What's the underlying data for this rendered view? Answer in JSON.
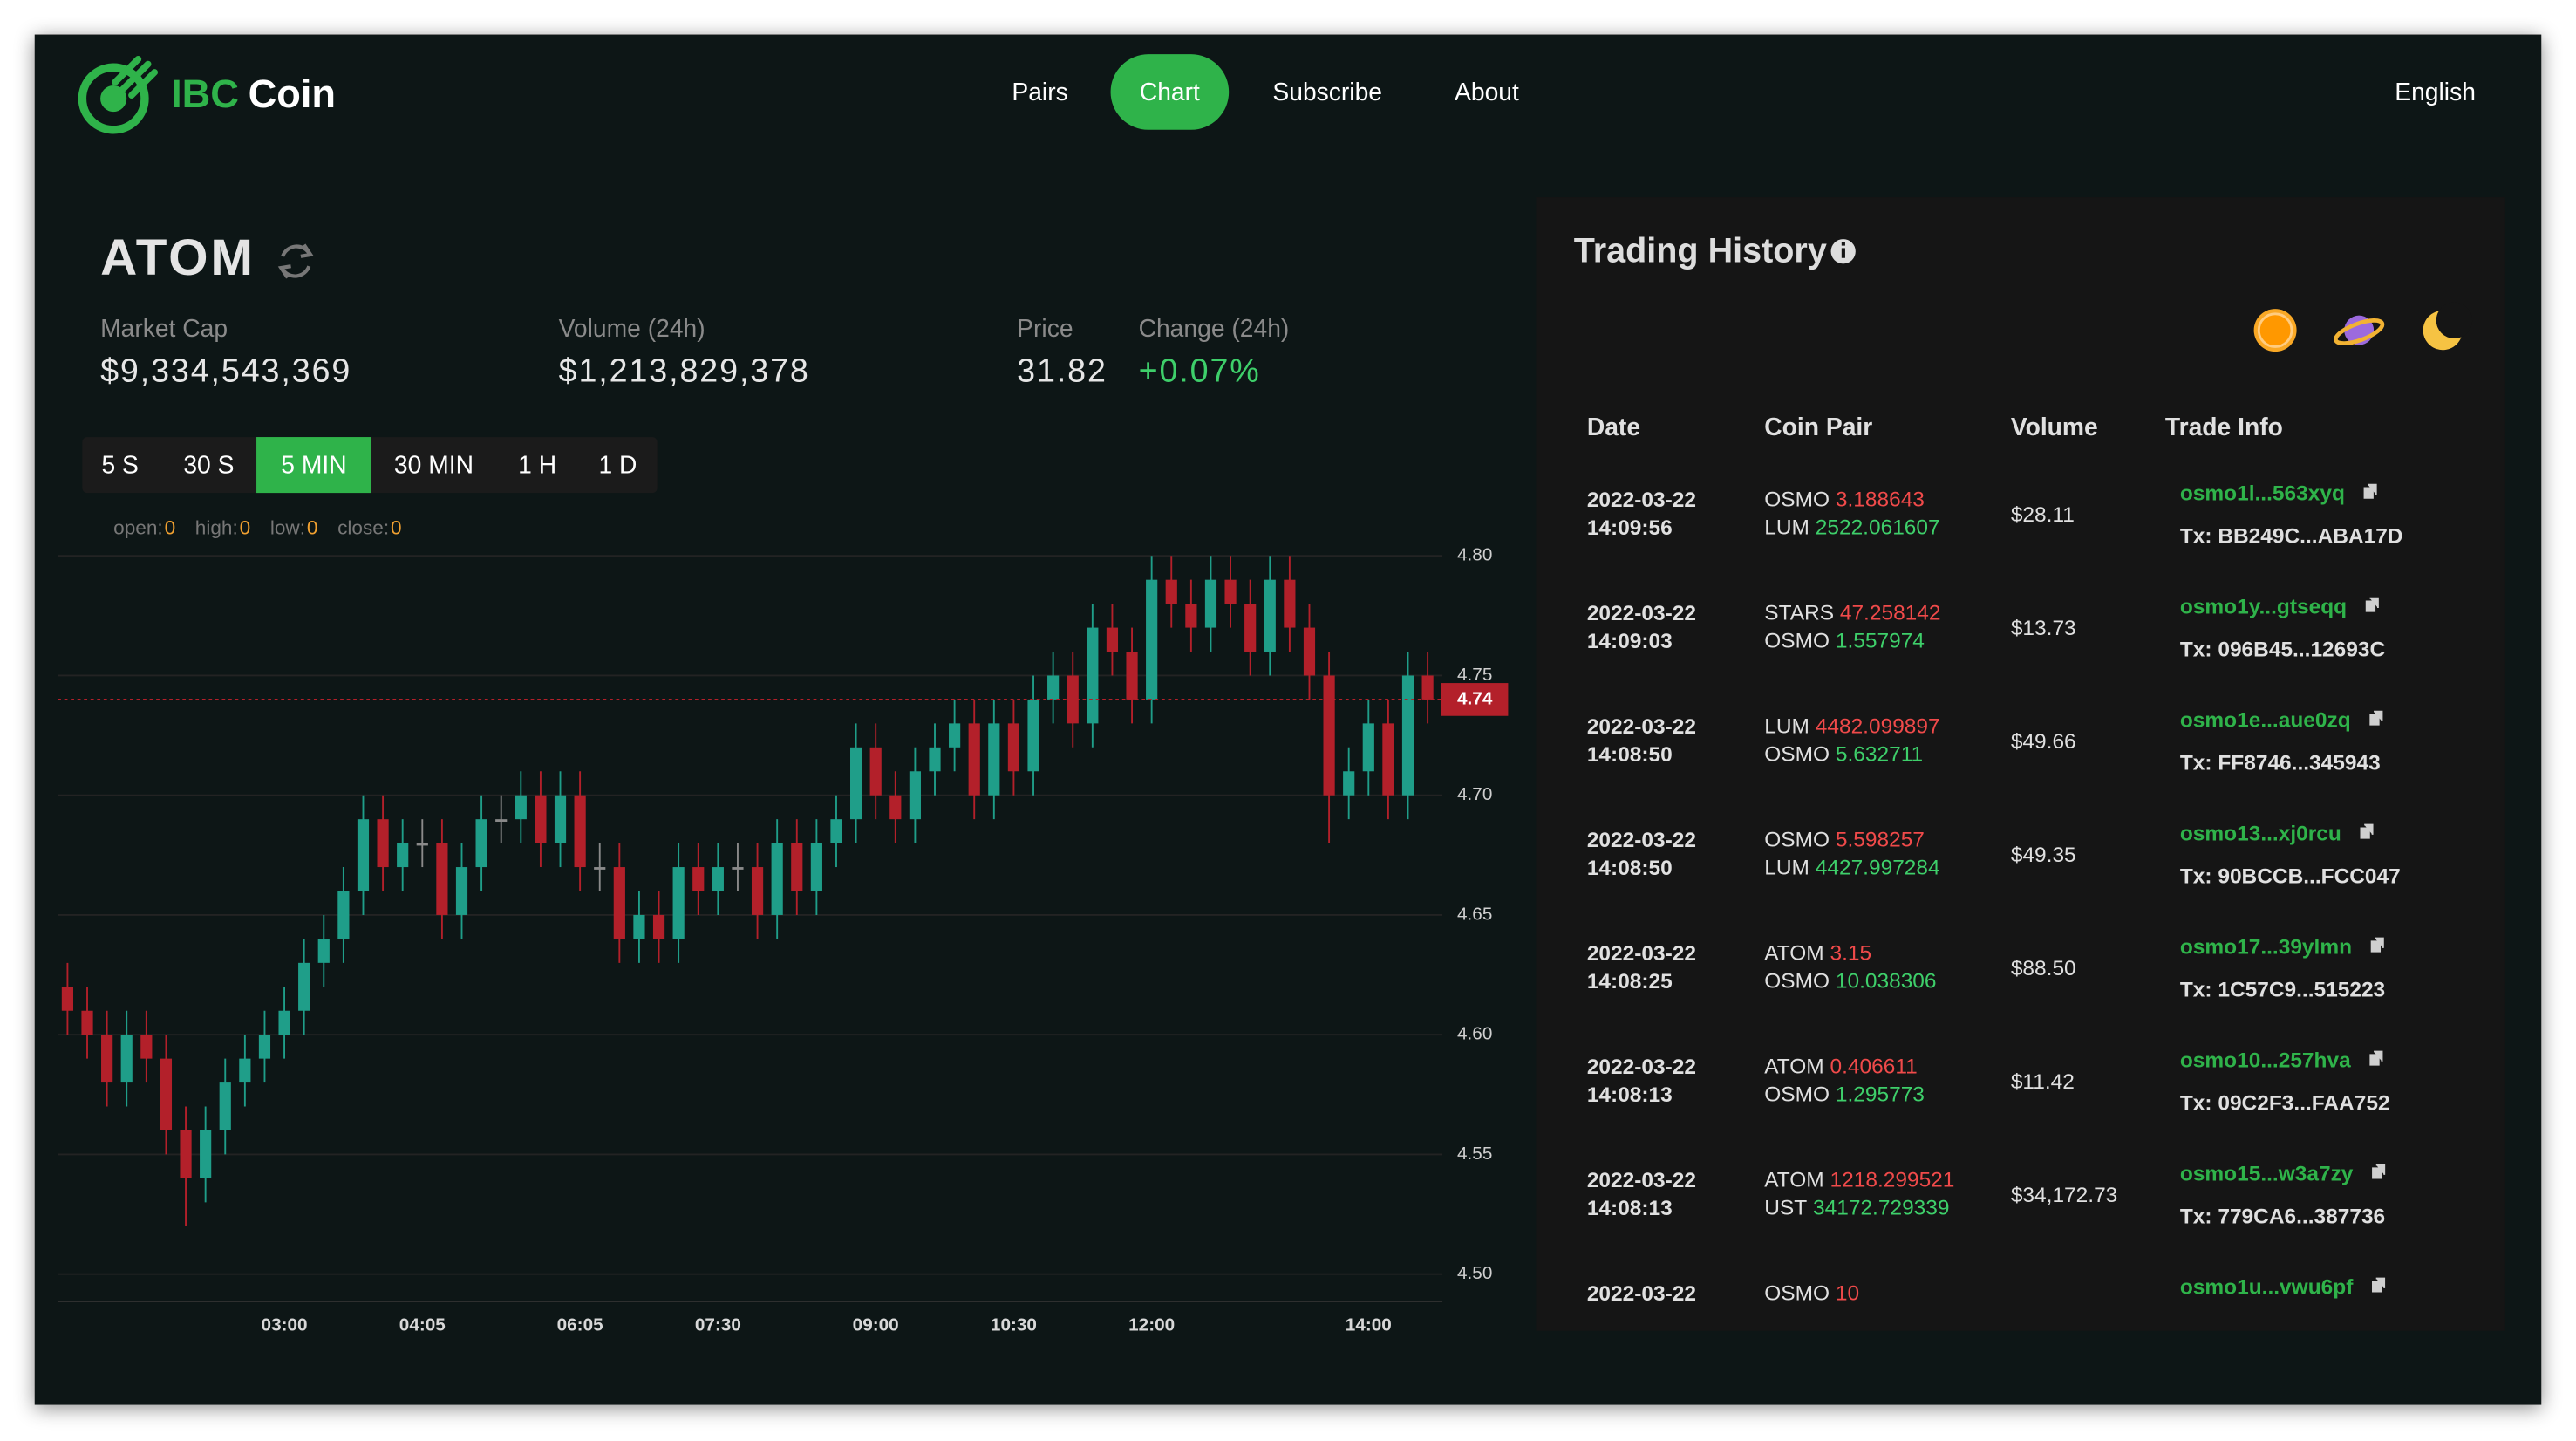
{
  "header": {
    "brand": [
      "IBC",
      "Coin"
    ],
    "nav": [
      "Pairs",
      "Chart",
      "Subscribe",
      "About"
    ],
    "active_nav": 1,
    "language": "English",
    "accent_color": "#2fb34a"
  },
  "coin": {
    "name": "ATOM",
    "stats": [
      {
        "label": "Market Cap",
        "value": "$9,334,543,369"
      },
      {
        "label": "Volume (24h)",
        "value": "$1,213,829,378"
      },
      {
        "label": "Price",
        "value": "31.82"
      },
      {
        "label": "Change (24h)",
        "value": "+0.07%"
      }
    ]
  },
  "controls": {
    "intervals": [
      "5 S",
      "30 S",
      "5 MIN",
      "30 MIN",
      "1 H",
      "1 D"
    ],
    "active_interval": 2,
    "ohlc_legend": [
      {
        "label": "open:",
        "value": 0
      },
      {
        "label": "high:",
        "value": 0
      },
      {
        "label": "low:",
        "value": 0
      },
      {
        "label": "close:",
        "value": 0
      }
    ]
  },
  "chart_data": {
    "type": "candlestick",
    "categories": [
      null,
      null,
      null,
      null,
      null,
      null,
      null,
      null,
      null,
      null,
      null,
      "03:00",
      null,
      null,
      null,
      null,
      null,
      null,
      "04:05",
      null,
      null,
      null,
      null,
      null,
      null,
      null,
      "06:05",
      null,
      null,
      null,
      null,
      null,
      null,
      "07:30",
      null,
      null,
      null,
      null,
      null,
      null,
      null,
      "09:00",
      null,
      null,
      null,
      null,
      null,
      null,
      "10:30",
      null,
      null,
      null,
      null,
      null,
      null,
      "12:00",
      null,
      null,
      null,
      null,
      null,
      null,
      null,
      null,
      null,
      null,
      "14:00",
      null,
      null,
      null
    ],
    "open": [
      4.62,
      4.61,
      4.6,
      4.58,
      4.6,
      4.59,
      4.56,
      4.54,
      4.56,
      4.58,
      4.59,
      4.6,
      4.61,
      4.63,
      4.64,
      4.66,
      4.69,
      4.67,
      4.68,
      4.68,
      4.65,
      4.67,
      4.69,
      4.69,
      4.7,
      4.68,
      4.7,
      4.67,
      4.67,
      4.64,
      4.65,
      4.64,
      4.67,
      4.66,
      4.67,
      4.67,
      4.65,
      4.68,
      4.66,
      4.68,
      4.69,
      4.72,
      4.7,
      4.69,
      4.71,
      4.72,
      4.73,
      4.7,
      4.73,
      4.71,
      4.74,
      4.75,
      4.73,
      4.77,
      4.76,
      4.74,
      4.79,
      4.78,
      4.77,
      4.79,
      4.78,
      4.76,
      4.79,
      4.77,
      4.75,
      4.7,
      4.71,
      4.73,
      4.7,
      4.75
    ],
    "high": [
      4.63,
      4.62,
      4.61,
      4.61,
      4.61,
      4.6,
      4.57,
      4.57,
      4.59,
      4.6,
      4.61,
      4.62,
      4.64,
      4.65,
      4.67,
      4.7,
      4.7,
      4.69,
      4.69,
      4.69,
      4.68,
      4.7,
      4.7,
      4.71,
      4.71,
      4.71,
      4.71,
      4.68,
      4.68,
      4.66,
      4.66,
      4.68,
      4.68,
      4.68,
      4.68,
      4.68,
      4.69,
      4.69,
      4.69,
      4.7,
      4.73,
      4.73,
      4.71,
      4.72,
      4.73,
      4.74,
      4.74,
      4.74,
      4.74,
      4.75,
      4.76,
      4.76,
      4.78,
      4.78,
      4.77,
      4.8,
      4.8,
      4.79,
      4.8,
      4.8,
      4.79,
      4.8,
      4.8,
      4.78,
      4.76,
      4.72,
      4.74,
      4.74,
      4.76,
      4.76
    ],
    "low": [
      4.6,
      4.59,
      4.57,
      4.57,
      4.58,
      4.55,
      4.52,
      4.53,
      4.55,
      4.57,
      4.58,
      4.59,
      4.6,
      4.62,
      4.63,
      4.65,
      4.66,
      4.66,
      4.67,
      4.64,
      4.64,
      4.66,
      4.68,
      4.68,
      4.67,
      4.67,
      4.66,
      4.66,
      4.63,
      4.63,
      4.63,
      4.63,
      4.65,
      4.65,
      4.66,
      4.64,
      4.64,
      4.65,
      4.65,
      4.67,
      4.68,
      4.69,
      4.68,
      4.68,
      4.7,
      4.71,
      4.69,
      4.69,
      4.7,
      4.7,
      4.73,
      4.72,
      4.72,
      4.75,
      4.73,
      4.73,
      4.77,
      4.76,
      4.76,
      4.77,
      4.75,
      4.75,
      4.76,
      4.74,
      4.68,
      4.69,
      4.7,
      4.69,
      4.69,
      4.73
    ],
    "close": [
      4.61,
      4.6,
      4.58,
      4.6,
      4.59,
      4.56,
      4.54,
      4.56,
      4.58,
      4.59,
      4.6,
      4.61,
      4.63,
      4.64,
      4.66,
      4.69,
      4.67,
      4.68,
      4.68,
      4.65,
      4.67,
      4.69,
      4.69,
      4.7,
      4.68,
      4.7,
      4.67,
      4.67,
      4.64,
      4.65,
      4.64,
      4.67,
      4.66,
      4.67,
      4.67,
      4.65,
      4.68,
      4.66,
      4.68,
      4.69,
      4.72,
      4.7,
      4.69,
      4.71,
      4.72,
      4.73,
      4.7,
      4.73,
      4.71,
      4.74,
      4.75,
      4.73,
      4.77,
      4.76,
      4.74,
      4.79,
      4.78,
      4.77,
      4.79,
      4.78,
      4.76,
      4.79,
      4.77,
      4.75,
      4.7,
      4.71,
      4.73,
      4.7,
      4.75,
      4.74
    ],
    "up_color": "#1f9e89",
    "down_color": "#b3202a",
    "flat_color": "#8a8a8a",
    "ylim": [
      4.49,
      4.805
    ],
    "yticks": [
      {
        "value": 4.5,
        "label": "4.50"
      },
      4.55,
      {
        "value": 4.6,
        "label": "4.60"
      },
      4.65,
      {
        "value": 4.7,
        "label": "4.70"
      },
      4.75,
      {
        "value": 4.8,
        "label": "4.80"
      }
    ],
    "grid": true,
    "last_price": 4.74
  },
  "trading_history": {
    "title": "Trading History",
    "columns": [
      "Date",
      "Coin Pair",
      "Volume",
      "Trade Info"
    ],
    "rows": [
      {
        "date": "2022-03-22",
        "time": "14:09:56",
        "pair": [
          {
            "coin": "OSMO",
            "amount": "3.188643"
          },
          {
            "coin": "LUM",
            "amount": "2522.061607"
          }
        ],
        "volume": "$28.11",
        "address": "osmo1l...563xyq",
        "tx": "Tx: BB249C...ABA17D"
      },
      {
        "date": "2022-03-22",
        "time": "14:09:03",
        "pair": [
          {
            "coin": "STARS",
            "amount": "47.258142"
          },
          {
            "coin": "OSMO",
            "amount": "1.557974"
          }
        ],
        "volume": "$13.73",
        "address": "osmo1y...gtseqq",
        "tx": "Tx: 096B45...12693C"
      },
      {
        "date": "2022-03-22",
        "time": "14:08:50",
        "pair": [
          {
            "coin": "LUM",
            "amount": "4482.099897"
          },
          {
            "coin": "OSMO",
            "amount": "5.632711"
          }
        ],
        "volume": "$49.66",
        "address": "osmo1e...aue0zq",
        "tx": "Tx: FF8746...345943"
      },
      {
        "date": "2022-03-22",
        "time": "14:08:50",
        "pair": [
          {
            "coin": "OSMO",
            "amount": "5.598257"
          },
          {
            "coin": "LUM",
            "amount": "4427.997284"
          }
        ],
        "volume": "$49.35",
        "address": "osmo13...xj0rcu",
        "tx": "Tx: 90BCCB...FCC047"
      },
      {
        "date": "2022-03-22",
        "time": "14:08:25",
        "pair": [
          {
            "coin": "ATOM",
            "amount": "3.15"
          },
          {
            "coin": "OSMO",
            "amount": "10.038306"
          }
        ],
        "volume": "$88.50",
        "address": "osmo17...39ylmn",
        "tx": "Tx: 1C57C9...515223"
      },
      {
        "date": "2022-03-22",
        "time": "14:08:13",
        "pair": [
          {
            "coin": "ATOM",
            "amount": "0.406611"
          },
          {
            "coin": "OSMO",
            "amount": "1.295773"
          }
        ],
        "volume": "$11.42",
        "address": "osmo10...257hva",
        "tx": "Tx: 09C2F3...FAA752"
      },
      {
        "date": "2022-03-22",
        "time": "14:08:13",
        "pair": [
          {
            "coin": "ATOM",
            "amount": "1218.299521"
          },
          {
            "coin": "UST",
            "amount": "34172.729339"
          }
        ],
        "volume": "$34,172.73",
        "address": "osmo15...w3a7zy",
        "tx": "Tx: 779CA6...387736"
      },
      {
        "date": "2022-03-22",
        "pair": [
          {
            "coin": "OSMO",
            "amount": "10"
          }
        ],
        "address": "osmo1u...vwu6pf"
      }
    ]
  }
}
